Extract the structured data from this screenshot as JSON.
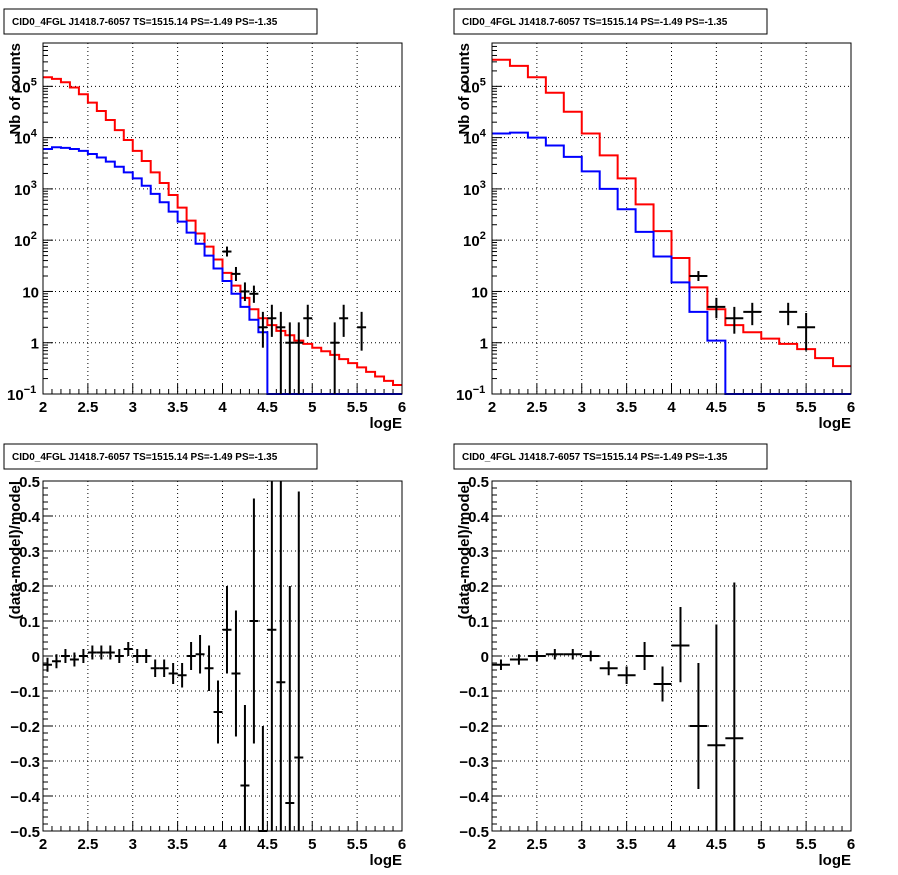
{
  "chart_data": [
    {
      "type": "histogram",
      "title": "CID0_4FGL J1418.7-6057 TS=1515.14 PS=-1.49 PS=-1.35",
      "xlabel": "logE",
      "ylabel": "Nb of counts",
      "xlim": [
        2,
        6
      ],
      "ylim": [
        0.1,
        700000
      ],
      "yscale": "log",
      "grid": true,
      "x_ticks": [
        "2",
        "2.5",
        "3",
        "3.5",
        "4",
        "4.5",
        "5",
        "5.5",
        "6"
      ],
      "y_ticks": [
        {
          "value": 0.1,
          "base": "10",
          "exp": "−1"
        },
        {
          "value": 1,
          "base": "1",
          "exp": ""
        },
        {
          "value": 10,
          "base": "10",
          "exp": ""
        },
        {
          "value": 100,
          "base": "10",
          "exp": "2"
        },
        {
          "value": 1000,
          "base": "10",
          "exp": "3"
        },
        {
          "value": 10000,
          "base": "10",
          "exp": "4"
        },
        {
          "value": 100000,
          "base": "10",
          "exp": "5"
        }
      ],
      "bin_edges": [
        2.0,
        2.1,
        2.2,
        2.3,
        2.4,
        2.5,
        2.6,
        2.7,
        2.8,
        2.9,
        3.0,
        3.1,
        3.2,
        3.3,
        3.4,
        3.5,
        3.6,
        3.7,
        3.8,
        3.9,
        4.0,
        4.1,
        4.2,
        4.3,
        4.4,
        4.5,
        4.6,
        4.7,
        4.8,
        4.9,
        5.0,
        5.1,
        5.2,
        5.3,
        5.4,
        5.5,
        5.6,
        5.7,
        5.8,
        5.9,
        6.0
      ],
      "series": [
        {
          "color": "#ff0000",
          "values": [
            150000,
            140000,
            120000,
            95000,
            70000,
            48000,
            33000,
            22000,
            14000,
            9000,
            5500,
            3500,
            2100,
            1300,
            760,
            430,
            240,
            135,
            75,
            42,
            23,
            13,
            7.5,
            4.5,
            3.0,
            2.2,
            1.7,
            1.4,
            1.1,
            0.95,
            0.8,
            0.68,
            0.58,
            0.48,
            0.4,
            0.33,
            0.27,
            0.22,
            0.18,
            0.15
          ]
        },
        {
          "color": "#0000ff",
          "values": [
            6000,
            6500,
            6300,
            6000,
            5500,
            4800,
            4100,
            3400,
            2700,
            2100,
            1600,
            1150,
            800,
            550,
            360,
            230,
            140,
            85,
            50,
            28,
            16,
            9,
            5,
            2.8,
            1.6,
            0.05,
            0.05,
            0.05,
            0.05,
            0.05,
            0.05,
            0.05,
            0.05,
            0.05,
            0.05,
            0.05,
            0.05,
            0.05,
            0.05,
            0.05
          ]
        }
      ],
      "data_points": [
        {
          "x": 4.05,
          "y": 60,
          "lo": 48,
          "hi": 75,
          "xe": 0.05
        },
        {
          "x": 4.15,
          "y": 22,
          "lo": 16,
          "hi": 30,
          "xe": 0.05
        },
        {
          "x": 4.25,
          "y": 10,
          "lo": 6.5,
          "hi": 15,
          "xe": 0.05
        },
        {
          "x": 4.35,
          "y": 9,
          "lo": 6,
          "hi": 13,
          "xe": 0.05
        },
        {
          "x": 4.45,
          "y": 2,
          "lo": 0.8,
          "hi": 4,
          "xe": 0.05
        },
        {
          "x": 4.55,
          "y": 3,
          "lo": 1.3,
          "hi": 5.5,
          "xe": 0.05
        },
        {
          "x": 4.65,
          "y": 2,
          "lo": 0.1,
          "hi": 4,
          "xe": 0.05
        },
        {
          "x": 4.75,
          "y": 1,
          "lo": 0.1,
          "hi": 2.5,
          "xe": 0.05
        },
        {
          "x": 4.85,
          "y": 1,
          "lo": 0.1,
          "hi": 2.5,
          "xe": 0.05
        },
        {
          "x": 4.95,
          "y": 3,
          "lo": 1.3,
          "hi": 5.5,
          "xe": 0.05
        },
        {
          "x": 5.25,
          "y": 1,
          "lo": 0.1,
          "hi": 2.5,
          "xe": 0.05
        },
        {
          "x": 5.35,
          "y": 3,
          "lo": 1.3,
          "hi": 5.5,
          "xe": 0.05
        },
        {
          "x": 5.55,
          "y": 2,
          "lo": 0.7,
          "hi": 4,
          "xe": 0.05
        }
      ]
    },
    {
      "type": "histogram",
      "title": "CID0_4FGL J1418.7-6057 TS=1515.14 PS=-1.49 PS=-1.35",
      "xlabel": "logE",
      "ylabel": "Nb of counts",
      "xlim": [
        2,
        6
      ],
      "ylim": [
        0.1,
        700000
      ],
      "yscale": "log",
      "grid": true,
      "x_ticks": [
        "2",
        "2.5",
        "3",
        "3.5",
        "4",
        "4.5",
        "5",
        "5.5",
        "6"
      ],
      "y_ticks": [
        {
          "value": 0.1,
          "base": "10",
          "exp": "−1"
        },
        {
          "value": 1,
          "base": "1",
          "exp": ""
        },
        {
          "value": 10,
          "base": "10",
          "exp": ""
        },
        {
          "value": 100,
          "base": "10",
          "exp": "2"
        },
        {
          "value": 1000,
          "base": "10",
          "exp": "3"
        },
        {
          "value": 10000,
          "base": "10",
          "exp": "4"
        },
        {
          "value": 100000,
          "base": "10",
          "exp": "5"
        }
      ],
      "bin_edges": [
        2.0,
        2.2,
        2.4,
        2.6,
        2.8,
        3.0,
        3.2,
        3.4,
        3.6,
        3.8,
        4.0,
        4.2,
        4.4,
        4.6,
        4.8,
        5.0,
        5.2,
        5.4,
        5.6,
        5.8,
        6.0
      ],
      "series": [
        {
          "color": "#ff0000",
          "values": [
            330000,
            250000,
            150000,
            75000,
            32000,
            12000,
            4500,
            1600,
            500,
            150,
            45,
            12,
            4.5,
            2.2,
            1.6,
            1.2,
            0.95,
            0.75,
            0.5,
            0.35
          ]
        },
        {
          "color": "#0000ff",
          "values": [
            12000,
            12500,
            10000,
            7000,
            4200,
            2200,
            1000,
            400,
            145,
            48,
            15,
            4,
            1.1,
            0.05,
            0.05,
            0.05,
            0.05,
            0.05,
            0.05,
            0.05
          ]
        }
      ],
      "data_points": [
        {
          "x": 4.3,
          "y": 20,
          "lo": 16,
          "hi": 25,
          "xe": 0.1
        },
        {
          "x": 4.5,
          "y": 5,
          "lo": 3,
          "hi": 7.5,
          "xe": 0.1
        },
        {
          "x": 4.7,
          "y": 3,
          "lo": 1.5,
          "hi": 5,
          "xe": 0.1
        },
        {
          "x": 4.9,
          "y": 4,
          "lo": 2.2,
          "hi": 6,
          "xe": 0.1
        },
        {
          "x": 5.3,
          "y": 4,
          "lo": 2.2,
          "hi": 6,
          "xe": 0.1
        },
        {
          "x": 5.5,
          "y": 2,
          "lo": 0.7,
          "hi": 3.8,
          "xe": 0.1
        }
      ]
    },
    {
      "type": "scatter",
      "title": "CID0_4FGL J1418.7-6057 TS=1515.14 PS=-1.49 PS=-1.35",
      "xlabel": "logE",
      "ylabel": "(data-model)/model",
      "xlim": [
        2,
        6
      ],
      "ylim": [
        -0.5,
        0.5
      ],
      "yscale": "linear",
      "grid": true,
      "x_ticks": [
        "2",
        "2.5",
        "3",
        "3.5",
        "4",
        "4.5",
        "5",
        "5.5",
        "6"
      ],
      "y_ticks": [
        "−0.5",
        "−0.4",
        "−0.3",
        "−0.2",
        "−0.1",
        "0",
        "0.1",
        "0.2",
        "0.3",
        "0.4",
        "0.5"
      ],
      "data_points": [
        {
          "x": 2.05,
          "y": -0.025,
          "lo": -0.045,
          "hi": -0.005,
          "xe": 0.05
        },
        {
          "x": 2.15,
          "y": -0.015,
          "lo": -0.035,
          "hi": 0.005,
          "xe": 0.05
        },
        {
          "x": 2.25,
          "y": 0.0,
          "lo": -0.02,
          "hi": 0.02,
          "xe": 0.05
        },
        {
          "x": 2.35,
          "y": -0.01,
          "lo": -0.03,
          "hi": 0.01,
          "xe": 0.05
        },
        {
          "x": 2.45,
          "y": 0.0,
          "lo": -0.02,
          "hi": 0.02,
          "xe": 0.05
        },
        {
          "x": 2.55,
          "y": 0.01,
          "lo": -0.01,
          "hi": 0.03,
          "xe": 0.05
        },
        {
          "x": 2.65,
          "y": 0.01,
          "lo": -0.01,
          "hi": 0.03,
          "xe": 0.05
        },
        {
          "x": 2.75,
          "y": 0.01,
          "lo": -0.01,
          "hi": 0.03,
          "xe": 0.05
        },
        {
          "x": 2.85,
          "y": 0.0,
          "lo": -0.02,
          "hi": 0.02,
          "xe": 0.05
        },
        {
          "x": 2.95,
          "y": 0.02,
          "lo": 0.0,
          "hi": 0.04,
          "xe": 0.05
        },
        {
          "x": 3.05,
          "y": 0.0,
          "lo": -0.02,
          "hi": 0.02,
          "xe": 0.05
        },
        {
          "x": 3.15,
          "y": 0.0,
          "lo": -0.02,
          "hi": 0.02,
          "xe": 0.05
        },
        {
          "x": 3.25,
          "y": -0.035,
          "lo": -0.06,
          "hi": -0.01,
          "xe": 0.05
        },
        {
          "x": 3.35,
          "y": -0.035,
          "lo": -0.06,
          "hi": -0.01,
          "xe": 0.05
        },
        {
          "x": 3.45,
          "y": -0.05,
          "lo": -0.08,
          "hi": -0.02,
          "xe": 0.05
        },
        {
          "x": 3.55,
          "y": -0.055,
          "lo": -0.09,
          "hi": -0.02,
          "xe": 0.05
        },
        {
          "x": 3.65,
          "y": 0.0,
          "lo": -0.04,
          "hi": 0.04,
          "xe": 0.05
        },
        {
          "x": 3.75,
          "y": 0.005,
          "lo": -0.05,
          "hi": 0.06,
          "xe": 0.05
        },
        {
          "x": 3.85,
          "y": -0.035,
          "lo": -0.1,
          "hi": 0.03,
          "xe": 0.05
        },
        {
          "x": 3.95,
          "y": -0.16,
          "lo": -0.25,
          "hi": -0.07,
          "xe": 0.05
        },
        {
          "x": 4.05,
          "y": 0.075,
          "lo": -0.05,
          "hi": 0.2,
          "xe": 0.05
        },
        {
          "x": 4.15,
          "y": -0.05,
          "lo": -0.23,
          "hi": 0.13,
          "xe": 0.05
        },
        {
          "x": 4.25,
          "y": -0.37,
          "lo": -0.6,
          "hi": -0.14,
          "xe": 0.05
        },
        {
          "x": 4.35,
          "y": 0.1,
          "lo": -0.25,
          "hi": 0.45,
          "xe": 0.05
        },
        {
          "x": 4.45,
          "y": -0.5,
          "lo": -0.6,
          "hi": -0.2,
          "xe": 0.05
        },
        {
          "x": 4.55,
          "y": 0.075,
          "lo": -0.5,
          "hi": 0.65,
          "xe": 0.05
        },
        {
          "x": 4.65,
          "y": -0.075,
          "lo": -0.6,
          "hi": 0.5,
          "xe": 0.05
        },
        {
          "x": 4.75,
          "y": -0.42,
          "lo": -0.6,
          "hi": 0.2,
          "xe": 0.05
        },
        {
          "x": 4.85,
          "y": -0.29,
          "lo": -0.6,
          "hi": 0.47,
          "xe": 0.05
        }
      ]
    },
    {
      "type": "scatter",
      "title": "CID0_4FGL J1418.7-6057 TS=1515.14 PS=-1.49 PS=-1.35",
      "xlabel": "logE",
      "ylabel": "(data-model)/model",
      "xlim": [
        2,
        6
      ],
      "ylim": [
        -0.5,
        0.5
      ],
      "yscale": "linear",
      "grid": true,
      "x_ticks": [
        "2",
        "2.5",
        "3",
        "3.5",
        "4",
        "4.5",
        "5",
        "5.5",
        "6"
      ],
      "y_ticks": [
        "−0.5",
        "−0.4",
        "−0.3",
        "−0.2",
        "−0.1",
        "0",
        "0.1",
        "0.2",
        "0.3",
        "0.4",
        "0.5"
      ],
      "data_points": [
        {
          "x": 2.1,
          "y": -0.025,
          "lo": -0.04,
          "hi": -0.01,
          "xe": 0.1
        },
        {
          "x": 2.3,
          "y": -0.01,
          "lo": -0.025,
          "hi": 0.005,
          "xe": 0.1
        },
        {
          "x": 2.5,
          "y": 0.0,
          "lo": -0.015,
          "hi": 0.015,
          "xe": 0.1
        },
        {
          "x": 2.7,
          "y": 0.005,
          "lo": -0.01,
          "hi": 0.02,
          "xe": 0.1
        },
        {
          "x": 2.9,
          "y": 0.005,
          "lo": -0.01,
          "hi": 0.02,
          "xe": 0.1
        },
        {
          "x": 3.1,
          "y": 0.0,
          "lo": -0.015,
          "hi": 0.015,
          "xe": 0.1
        },
        {
          "x": 3.3,
          "y": -0.035,
          "lo": -0.055,
          "hi": -0.015,
          "xe": 0.1
        },
        {
          "x": 3.5,
          "y": -0.055,
          "lo": -0.08,
          "hi": -0.03,
          "xe": 0.1
        },
        {
          "x": 3.7,
          "y": 0.0,
          "lo": -0.04,
          "hi": 0.04,
          "xe": 0.1
        },
        {
          "x": 3.9,
          "y": -0.08,
          "lo": -0.13,
          "hi": -0.03,
          "xe": 0.1
        },
        {
          "x": 4.1,
          "y": 0.03,
          "lo": -0.075,
          "hi": 0.14,
          "xe": 0.1
        },
        {
          "x": 4.3,
          "y": -0.2,
          "lo": -0.38,
          "hi": -0.02,
          "xe": 0.1
        },
        {
          "x": 4.5,
          "y": -0.255,
          "lo": -0.6,
          "hi": 0.09,
          "xe": 0.1
        },
        {
          "x": 4.7,
          "y": -0.235,
          "lo": -0.6,
          "hi": 0.21,
          "xe": 0.1
        }
      ]
    }
  ]
}
